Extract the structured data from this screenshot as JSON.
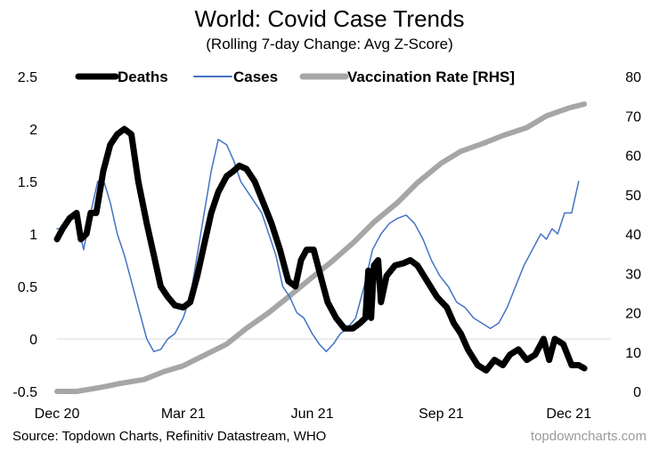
{
  "title": "World: Covid Case Trends",
  "subtitle": "(Rolling 7-day Change: Avg Z-Score)",
  "source": "Source: Topdown Charts, Refinitiv Datastream, WHO",
  "brand": "topdowncharts.com",
  "chart_data": {
    "type": "line",
    "x": {
      "range": [
        "2020-12-01",
        "2021-12-31"
      ],
      "tick_labels": [
        {
          "label": "Dec 20",
          "date": "2020-12-01"
        },
        {
          "label": "Mar 21",
          "date": "2021-03-01"
        },
        {
          "label": "Jun 21",
          "date": "2021-06-01"
        },
        {
          "label": "Sep 21",
          "date": "2021-09-01"
        },
        {
          "label": "Dec 21",
          "date": "2021-12-01"
        }
      ]
    },
    "y_left": {
      "min": -0.5,
      "max": 2.5,
      "ticks": [
        "2.5",
        "2",
        "1.5",
        "1",
        "0.5",
        "0",
        "-0.5"
      ]
    },
    "y_right": {
      "min": 0,
      "max": 80,
      "ticks": [
        "80",
        "70",
        "60",
        "50",
        "40",
        "30",
        "20",
        "10",
        "0"
      ]
    },
    "grid": false,
    "zero_line": true,
    "legend_position": "top",
    "series": [
      {
        "name": "Deaths",
        "axis": "left",
        "color": "#000000",
        "style": "thick",
        "points": [
          [
            "2020-12-01",
            0.95
          ],
          [
            "2020-12-05",
            1.05
          ],
          [
            "2020-12-10",
            1.15
          ],
          [
            "2020-12-15",
            1.2
          ],
          [
            "2020-12-18",
            0.95
          ],
          [
            "2020-12-22",
            1.0
          ],
          [
            "2020-12-25",
            1.2
          ],
          [
            "2020-12-29",
            1.2
          ],
          [
            "2021-01-03",
            1.6
          ],
          [
            "2021-01-08",
            1.85
          ],
          [
            "2021-01-13",
            1.95
          ],
          [
            "2021-01-18",
            2.0
          ],
          [
            "2021-01-23",
            1.95
          ],
          [
            "2021-01-28",
            1.5
          ],
          [
            "2021-02-03",
            1.1
          ],
          [
            "2021-02-08",
            0.8
          ],
          [
            "2021-02-13",
            0.5
          ],
          [
            "2021-02-18",
            0.4
          ],
          [
            "2021-02-23",
            0.32
          ],
          [
            "2021-03-01",
            0.3
          ],
          [
            "2021-03-06",
            0.35
          ],
          [
            "2021-03-11",
            0.6
          ],
          [
            "2021-03-16",
            0.9
          ],
          [
            "2021-03-21",
            1.2
          ],
          [
            "2021-03-26",
            1.4
          ],
          [
            "2021-04-01",
            1.55
          ],
          [
            "2021-04-06",
            1.6
          ],
          [
            "2021-04-10",
            1.65
          ],
          [
            "2021-04-15",
            1.62
          ],
          [
            "2021-04-21",
            1.5
          ],
          [
            "2021-04-27",
            1.3
          ],
          [
            "2021-05-03",
            1.1
          ],
          [
            "2021-05-09",
            0.85
          ],
          [
            "2021-05-15",
            0.55
          ],
          [
            "2021-05-20",
            0.5
          ],
          [
            "2021-05-24",
            0.75
          ],
          [
            "2021-05-28",
            0.85
          ],
          [
            "2021-06-02",
            0.85
          ],
          [
            "2021-06-07",
            0.6
          ],
          [
            "2021-06-12",
            0.35
          ],
          [
            "2021-06-18",
            0.2
          ],
          [
            "2021-06-24",
            0.1
          ],
          [
            "2021-06-30",
            0.1
          ],
          [
            "2021-07-05",
            0.15
          ],
          [
            "2021-07-09",
            0.2
          ],
          [
            "2021-07-11",
            0.65
          ],
          [
            "2021-07-13",
            0.2
          ],
          [
            "2021-07-15",
            0.7
          ],
          [
            "2021-07-18",
            0.75
          ],
          [
            "2021-07-20",
            0.35
          ],
          [
            "2021-07-24",
            0.6
          ],
          [
            "2021-07-30",
            0.7
          ],
          [
            "2021-08-05",
            0.72
          ],
          [
            "2021-08-10",
            0.75
          ],
          [
            "2021-08-15",
            0.7
          ],
          [
            "2021-08-22",
            0.55
          ],
          [
            "2021-08-29",
            0.4
          ],
          [
            "2021-09-05",
            0.3
          ],
          [
            "2021-09-10",
            0.15
          ],
          [
            "2021-09-15",
            0.05
          ],
          [
            "2021-09-20",
            -0.1
          ],
          [
            "2021-09-27",
            -0.25
          ],
          [
            "2021-10-03",
            -0.3
          ],
          [
            "2021-10-09",
            -0.2
          ],
          [
            "2021-10-15",
            -0.25
          ],
          [
            "2021-10-20",
            -0.15
          ],
          [
            "2021-10-26",
            -0.1
          ],
          [
            "2021-11-01",
            -0.2
          ],
          [
            "2021-11-07",
            -0.15
          ],
          [
            "2021-11-13",
            0.0
          ],
          [
            "2021-11-17",
            -0.2
          ],
          [
            "2021-11-21",
            0.0
          ],
          [
            "2021-11-27",
            -0.05
          ],
          [
            "2021-12-03",
            -0.25
          ],
          [
            "2021-12-08",
            -0.25
          ],
          [
            "2021-12-12",
            -0.28
          ]
        ]
      },
      {
        "name": "Cases",
        "axis": "left",
        "color": "#4472C4",
        "style": "thin",
        "points": [
          [
            "2020-12-01",
            1.05
          ],
          [
            "2020-12-05",
            1.05
          ],
          [
            "2020-12-10",
            1.15
          ],
          [
            "2020-12-15",
            1.15
          ],
          [
            "2020-12-20",
            0.85
          ],
          [
            "2020-12-25",
            1.2
          ],
          [
            "2020-12-30",
            1.5
          ],
          [
            "2021-01-03",
            1.52
          ],
          [
            "2021-01-08",
            1.3
          ],
          [
            "2021-01-13",
            1.0
          ],
          [
            "2021-01-18",
            0.8
          ],
          [
            "2021-01-23",
            0.55
          ],
          [
            "2021-01-28",
            0.3
          ],
          [
            "2021-02-03",
            0.0
          ],
          [
            "2021-02-08",
            -0.12
          ],
          [
            "2021-02-13",
            -0.1
          ],
          [
            "2021-02-18",
            0.0
          ],
          [
            "2021-02-23",
            0.05
          ],
          [
            "2021-03-01",
            0.2
          ],
          [
            "2021-03-06",
            0.4
          ],
          [
            "2021-03-11",
            0.8
          ],
          [
            "2021-03-16",
            1.2
          ],
          [
            "2021-03-21",
            1.6
          ],
          [
            "2021-03-26",
            1.9
          ],
          [
            "2021-04-01",
            1.85
          ],
          [
            "2021-04-06",
            1.7
          ],
          [
            "2021-04-11",
            1.5
          ],
          [
            "2021-04-16",
            1.4
          ],
          [
            "2021-04-21",
            1.3
          ],
          [
            "2021-04-26",
            1.2
          ],
          [
            "2021-05-01",
            1.0
          ],
          [
            "2021-05-06",
            0.8
          ],
          [
            "2021-05-11",
            0.5
          ],
          [
            "2021-05-16",
            0.4
          ],
          [
            "2021-05-21",
            0.25
          ],
          [
            "2021-05-26",
            0.2
          ],
          [
            "2021-06-01",
            0.05
          ],
          [
            "2021-06-06",
            -0.05
          ],
          [
            "2021-06-11",
            -0.12
          ],
          [
            "2021-06-16",
            -0.05
          ],
          [
            "2021-06-21",
            0.05
          ],
          [
            "2021-06-26",
            0.1
          ],
          [
            "2021-07-02",
            0.2
          ],
          [
            "2021-07-08",
            0.5
          ],
          [
            "2021-07-14",
            0.85
          ],
          [
            "2021-07-20",
            1.0
          ],
          [
            "2021-07-26",
            1.1
          ],
          [
            "2021-08-01",
            1.15
          ],
          [
            "2021-08-07",
            1.18
          ],
          [
            "2021-08-13",
            1.1
          ],
          [
            "2021-08-19",
            0.95
          ],
          [
            "2021-08-25",
            0.75
          ],
          [
            "2021-08-31",
            0.6
          ],
          [
            "2021-09-06",
            0.5
          ],
          [
            "2021-09-12",
            0.35
          ],
          [
            "2021-09-18",
            0.3
          ],
          [
            "2021-09-24",
            0.2
          ],
          [
            "2021-09-30",
            0.15
          ],
          [
            "2021-10-06",
            0.1
          ],
          [
            "2021-10-12",
            0.15
          ],
          [
            "2021-10-18",
            0.3
          ],
          [
            "2021-10-24",
            0.5
          ],
          [
            "2021-10-30",
            0.7
          ],
          [
            "2021-11-05",
            0.85
          ],
          [
            "2021-11-11",
            1.0
          ],
          [
            "2021-11-15",
            0.95
          ],
          [
            "2021-11-19",
            1.05
          ],
          [
            "2021-11-23",
            1.0
          ],
          [
            "2021-11-28",
            1.2
          ],
          [
            "2021-12-03",
            1.2
          ],
          [
            "2021-12-08",
            1.5
          ]
        ]
      },
      {
        "name": "Vaccination Rate [RHS]",
        "axis": "right",
        "color": "#A6A6A6",
        "style": "thick",
        "points": [
          [
            "2020-12-01",
            0.0
          ],
          [
            "2020-12-15",
            0.0
          ],
          [
            "2021-01-01",
            1.0
          ],
          [
            "2021-01-15",
            2.0
          ],
          [
            "2021-02-01",
            3.0
          ],
          [
            "2021-02-15",
            5.0
          ],
          [
            "2021-03-01",
            6.5
          ],
          [
            "2021-03-15",
            9.0
          ],
          [
            "2021-04-01",
            12.0
          ],
          [
            "2021-04-15",
            16.0
          ],
          [
            "2021-05-01",
            20.0
          ],
          [
            "2021-05-15",
            24.0
          ],
          [
            "2021-06-01",
            29.0
          ],
          [
            "2021-06-15",
            33.0
          ],
          [
            "2021-07-01",
            38.0
          ],
          [
            "2021-07-15",
            43.0
          ],
          [
            "2021-08-01",
            48.0
          ],
          [
            "2021-08-15",
            53.0
          ],
          [
            "2021-09-01",
            58.0
          ],
          [
            "2021-09-15",
            61.0
          ],
          [
            "2021-10-01",
            63.0
          ],
          [
            "2021-10-15",
            65.0
          ],
          [
            "2021-11-01",
            67.0
          ],
          [
            "2021-11-15",
            70.0
          ],
          [
            "2021-12-01",
            72.0
          ],
          [
            "2021-12-12",
            73.0
          ]
        ]
      }
    ]
  }
}
